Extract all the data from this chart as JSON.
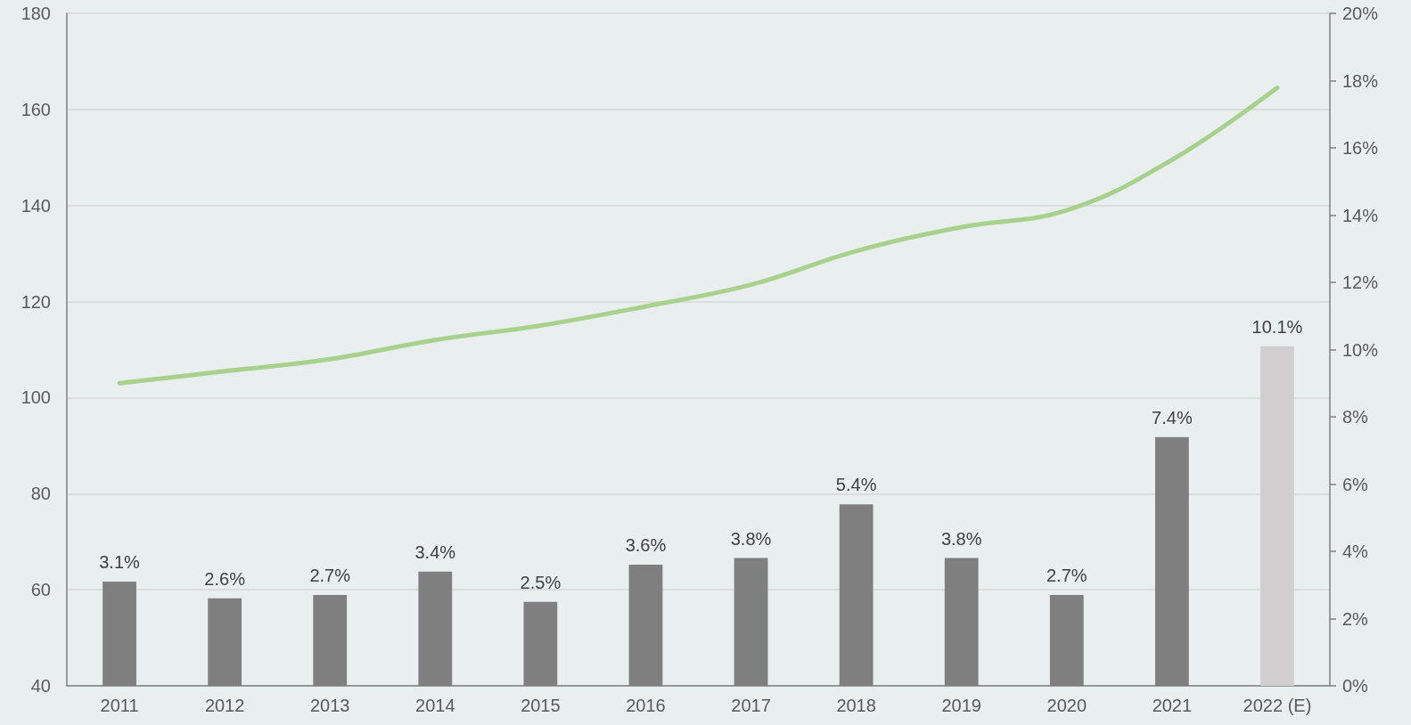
{
  "chart_data": {
    "type": "bar",
    "categories": [
      "2011",
      "2012",
      "2013",
      "2014",
      "2015",
      "2016",
      "2017",
      "2018",
      "2019",
      "2020",
      "2021",
      "2022 (E)"
    ],
    "series": [
      {
        "axis": "y2",
        "colors": [
          "#7f7f7f",
          "#7f7f7f",
          "#7f7f7f",
          "#7f7f7f",
          "#7f7f7f",
          "#7f7f7f",
          "#7f7f7f",
          "#7f7f7f",
          "#7f7f7f",
          "#7f7f7f",
          "#7f7f7f",
          "#d0cece"
        ],
        "values": [
          3.1,
          2.6,
          2.7,
          3.4,
          2.5,
          3.6,
          3.8,
          5.4,
          3.8,
          2.7,
          7.4,
          10.1
        ],
        "value_labels": [
          "3.1%",
          "2.6%",
          "2.7%",
          "3.4%",
          "2.5%",
          "3.6%",
          "3.8%",
          "5.4%",
          "3.8%",
          "2.7%",
          "7.4%",
          "10.1%"
        ]
      },
      {
        "type": "line",
        "color": "#a9d18e",
        "values": [
          103,
          105.5,
          108,
          112,
          115,
          119,
          123.5,
          130.5,
          135.5,
          139,
          149.5,
          164.5
        ]
      }
    ],
    "ylim": [
      40,
      180
    ],
    "yticks": [
      40,
      60,
      80,
      100,
      120,
      140,
      160,
      180
    ],
    "y2lim": [
      0,
      20
    ],
    "y2ticks": [
      {
        "value": 0,
        "label": "0%"
      },
      {
        "value": 2,
        "label": "2%"
      },
      {
        "value": 4,
        "label": "4%"
      },
      {
        "value": 6,
        "label": "6%"
      },
      {
        "value": 8,
        "label": "8%"
      },
      {
        "value": 10,
        "label": "10%"
      },
      {
        "value": 12,
        "label": "12%"
      },
      {
        "value": 14,
        "label": "14%"
      },
      {
        "value": 16,
        "label": "16%"
      },
      {
        "value": 18,
        "label": "18%"
      },
      {
        "value": 20,
        "label": "20%"
      }
    ],
    "grid": "y"
  }
}
